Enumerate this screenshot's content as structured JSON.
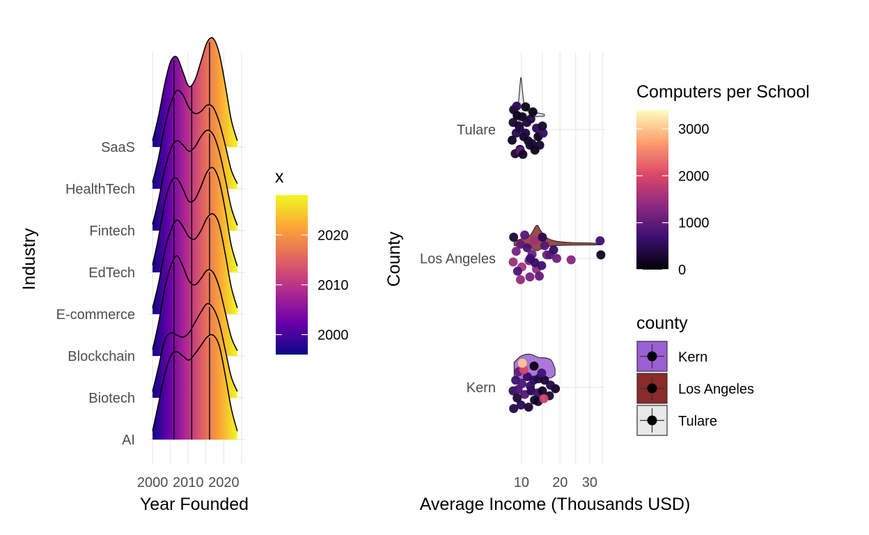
{
  "colors": {
    "plasma": [
      "#0d0887",
      "#6a00a8",
      "#b12a90",
      "#e16462",
      "#fca636",
      "#f0f921"
    ],
    "magma": [
      "#000004",
      "#3b0f70",
      "#8c2981",
      "#de4968",
      "#fe9f6d",
      "#fcfdbf"
    ],
    "kern_fill": "#9b5fd4",
    "la_fill": "#8b2a2a",
    "tulare_fill": "#e8e8e8",
    "point": "#000000"
  },
  "chart_data": [
    {
      "type": "ridgeline",
      "xlabel": "Year Founded",
      "ylabel": "Industry",
      "xlim": [
        1999,
        2026
      ],
      "x_ticks": [
        2000,
        2010,
        2020
      ],
      "x_tick_labels": [
        "2000",
        "2010",
        "2020"
      ],
      "categories": [
        "AI",
        "Biotech",
        "Blockchain",
        "E-commerce",
        "EdTech",
        "Fintech",
        "HealthTech",
        "SaaS"
      ],
      "quantile_lines": [
        2006,
        2011,
        2016
      ],
      "series": [
        {
          "category": "AI",
          "height": [
            0.08,
            0.35,
            0.62,
            0.8,
            0.84,
            0.8,
            0.76,
            0.82,
            0.9,
            0.98,
            1.0,
            0.9,
            0.62,
            0.3,
            0.08
          ]
        },
        {
          "category": "Biotech",
          "height": [
            0.06,
            0.3,
            0.55,
            0.62,
            0.6,
            0.58,
            0.62,
            0.72,
            0.82,
            0.9,
            0.86,
            0.72,
            0.46,
            0.2,
            0.06
          ]
        },
        {
          "category": "Blockchain",
          "height": [
            0.06,
            0.32,
            0.64,
            0.86,
            0.96,
            0.86,
            0.72,
            0.68,
            0.74,
            0.82,
            0.8,
            0.66,
            0.42,
            0.18,
            0.05
          ]
        },
        {
          "category": "E-commerce",
          "height": [
            0.06,
            0.3,
            0.6,
            0.8,
            0.9,
            0.84,
            0.74,
            0.72,
            0.8,
            0.92,
            0.96,
            0.86,
            0.58,
            0.26,
            0.06
          ]
        },
        {
          "category": "EdTech",
          "height": [
            0.07,
            0.34,
            0.66,
            0.86,
            0.9,
            0.8,
            0.68,
            0.7,
            0.82,
            0.96,
            1.0,
            0.88,
            0.6,
            0.26,
            0.06
          ]
        },
        {
          "category": "Fintech",
          "height": [
            0.06,
            0.3,
            0.58,
            0.78,
            0.86,
            0.82,
            0.76,
            0.8,
            0.9,
            0.96,
            0.92,
            0.76,
            0.5,
            0.22,
            0.05
          ]
        },
        {
          "category": "HealthTech",
          "height": [
            0.06,
            0.3,
            0.6,
            0.82,
            0.94,
            0.9,
            0.78,
            0.72,
            0.74,
            0.8,
            0.78,
            0.64,
            0.42,
            0.18,
            0.05
          ]
        },
        {
          "category": "SaaS",
          "height": [
            0.06,
            0.3,
            0.6,
            0.82,
            0.86,
            0.72,
            0.58,
            0.64,
            0.82,
            1.0,
            1.04,
            0.9,
            0.6,
            0.26,
            0.06
          ]
        }
      ],
      "density_x": [
        2000,
        2001.7,
        2003.4,
        2005.1,
        2006.8,
        2008.5,
        2010.2,
        2011.9,
        2013.6,
        2015.3,
        2017,
        2018.7,
        2020.4,
        2022.1,
        2023.8
      ],
      "legend": {
        "title": "x",
        "ticks": [
          2000,
          2010,
          2020
        ],
        "tick_labels": [
          "2000",
          "2010",
          "2020"
        ],
        "range": [
          1996,
          2028
        ]
      }
    },
    {
      "type": "violin+jitter",
      "xlabel": "Average Income (Thousands USD)",
      "ylabel": "County",
      "x_scale": "sqrt",
      "xlim": [
        7,
        36
      ],
      "x_ticks": [
        10,
        20,
        30
      ],
      "x_tick_labels": [
        "10",
        "20",
        "30"
      ],
      "categories": [
        "Kern",
        "Los Angeles",
        "Tulare"
      ],
      "violins": [
        {
          "county": "Kern",
          "x": [
            8.5,
            10,
            12,
            14,
            16,
            17.5,
            18.5
          ],
          "width": [
            0.35,
            0.55,
            0.6,
            0.5,
            0.48,
            0.4,
            0.15
          ]
        },
        {
          "county": "Los Angeles",
          "x": [
            8.5,
            10,
            12,
            13.5,
            14.5,
            16,
            19,
            24,
            30,
            34
          ],
          "width": [
            0.1,
            0.18,
            0.3,
            0.6,
            0.45,
            0.22,
            0.1,
            0.06,
            0.05,
            0.03
          ]
        },
        {
          "county": "Tulare",
          "x": [
            8.5,
            9.2,
            9.6,
            9.9,
            10.2,
            10.6,
            11.3,
            12.5,
            14,
            15.5
          ],
          "width": [
            0.05,
            0.2,
            0.8,
            1.2,
            0.8,
            0.35,
            0.15,
            0.1,
            0.08,
            0.04
          ]
        }
      ],
      "points": {
        "Tulare": [
          [
            8.9,
            0.05,
            450
          ],
          [
            9.5,
            -0.05,
            300
          ],
          [
            10.5,
            0.1,
            200
          ],
          [
            12.4,
            0.2,
            300
          ],
          [
            13.9,
            0.1,
            100
          ],
          [
            15.2,
            0.05,
            600
          ],
          [
            8.3,
            -0.1,
            250
          ],
          [
            9.1,
            -0.2,
            100
          ],
          [
            10.2,
            -0.18,
            150
          ],
          [
            11.2,
            -0.1,
            300
          ],
          [
            12.1,
            -0.15,
            400
          ],
          [
            13.5,
            -0.02,
            500
          ],
          [
            14.3,
            0.22,
            250
          ],
          [
            9.7,
            0.28,
            150
          ],
          [
            11.5,
            0.16,
            200
          ],
          [
            8.7,
            0.34,
            300
          ],
          [
            9.8,
            0.3,
            1000
          ],
          [
            11.9,
            0.22,
            300
          ],
          [
            8.4,
            -0.28,
            200
          ],
          [
            10.9,
            -0.32,
            100
          ],
          [
            9.6,
            -0.02,
            400
          ],
          [
            10.3,
            0.35,
            200
          ],
          [
            12.6,
            -0.25,
            100
          ],
          [
            13.1,
            0.29,
            150
          ],
          [
            15.0,
            -0.05,
            250
          ],
          [
            9.0,
            -0.33,
            500
          ],
          [
            10.9,
            0.05,
            350
          ],
          [
            8.1,
            0.15,
            200
          ]
        ],
        "Los Angeles": [
          [
            8.3,
            0.05,
            1500
          ],
          [
            10.1,
            0.12,
            1600
          ],
          [
            11.7,
            0.03,
            1200
          ],
          [
            13.5,
            0.15,
            1400
          ],
          [
            14.8,
            0.1,
            700
          ],
          [
            16.2,
            -0.05,
            1100
          ],
          [
            17.0,
            -0.05,
            900
          ],
          [
            23.5,
            0.02,
            1300
          ],
          [
            34.0,
            -0.25,
            700
          ],
          [
            34.3,
            -0.05,
            200
          ],
          [
            8.9,
            -0.1,
            1200
          ],
          [
            9.8,
            -0.2,
            1000
          ],
          [
            11.3,
            -0.15,
            800
          ],
          [
            12.4,
            -0.06,
            1100
          ],
          [
            13.0,
            -0.25,
            1500
          ],
          [
            15.6,
            -0.18,
            900
          ],
          [
            18.1,
            -0.12,
            600
          ],
          [
            19.0,
            0.0,
            1100
          ],
          [
            8.4,
            -0.3,
            300
          ],
          [
            9.8,
            0.3,
            1400
          ],
          [
            11.9,
            0.26,
            1200
          ],
          [
            10.7,
            -0.33,
            900
          ],
          [
            12.0,
            0.0,
            700
          ],
          [
            14.2,
            0.25,
            1000
          ],
          [
            15.0,
            -0.3,
            500
          ],
          [
            9.2,
            0.18,
            800
          ],
          [
            13.1,
            0.06,
            600
          ]
        ],
        "Kern": [
          [
            8.3,
            0.05,
            600
          ],
          [
            9.3,
            0.03,
            800
          ],
          [
            10.7,
            0.1,
            900
          ],
          [
            12.2,
            0.05,
            400
          ],
          [
            13.8,
            0.08,
            700
          ],
          [
            15.0,
            0.05,
            200
          ],
          [
            16.9,
            0.12,
            300
          ],
          [
            18.6,
            0.02,
            200
          ],
          [
            8.8,
            -0.1,
            700
          ],
          [
            10.1,
            -0.05,
            800
          ],
          [
            11.3,
            -0.15,
            600
          ],
          [
            12.8,
            -0.1,
            500
          ],
          [
            14.0,
            -0.12,
            400
          ],
          [
            15.6,
            -0.1,
            300
          ],
          [
            9.4,
            -0.22,
            1000
          ],
          [
            10.5,
            -0.25,
            2000
          ],
          [
            12.9,
            -0.3,
            100
          ],
          [
            13.9,
            0.2,
            300
          ],
          [
            8.4,
            0.3,
            400
          ],
          [
            9.9,
            0.25,
            500
          ],
          [
            11.6,
            0.28,
            300
          ],
          [
            13.0,
            0.18,
            200
          ],
          [
            15.4,
            0.16,
            1900
          ],
          [
            10.2,
            -0.34,
            3000
          ],
          [
            9.1,
            0.15,
            300
          ],
          [
            12.0,
            -0.02,
            600
          ],
          [
            14.8,
            -0.2,
            700
          ],
          [
            17.2,
            -0.03,
            400
          ]
        ]
      },
      "color_legend": {
        "title": "Computers per School",
        "ticks": [
          0,
          1000,
          2000,
          3000
        ],
        "tick_labels": [
          "0",
          "1000",
          "2000",
          "3000"
        ],
        "range": [
          0,
          3400
        ]
      },
      "fill_legend": {
        "title": "county",
        "entries": [
          "Kern",
          "Los Angeles",
          "Tulare"
        ]
      }
    }
  ]
}
